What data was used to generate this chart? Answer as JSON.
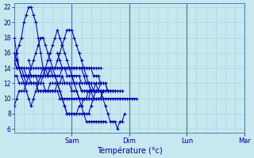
{
  "title": "Température (°c)",
  "bg_color": "#c8e8f0",
  "grid_color": "#b0d0e0",
  "line_color": "#0000cc",
  "ylim": [
    5.5,
    22.5
  ],
  "yticks": [
    6,
    8,
    10,
    12,
    14,
    16,
    18,
    20,
    22
  ],
  "xlim": [
    0,
    96
  ],
  "day_positions": [
    24,
    48,
    72,
    96
  ],
  "day_labels": [
    "Sam",
    "Dim",
    "Lun",
    "Mar"
  ],
  "series": [
    {
      "start": 0,
      "values": [
        16,
        15,
        14,
        13,
        12,
        11,
        10,
        9,
        10,
        11,
        12,
        13,
        14,
        14,
        14,
        14,
        13,
        13,
        12,
        11,
        10,
        9,
        8,
        8,
        8,
        8,
        8,
        9,
        9,
        10,
        10,
        10,
        11,
        11,
        12,
        11,
        11,
        10,
        9,
        8,
        7,
        7,
        7,
        6,
        7,
        7,
        8
      ]
    },
    {
      "start": 0,
      "values": [
        15,
        16,
        17,
        18,
        20,
        21,
        22,
        22,
        21,
        20,
        18,
        16,
        14,
        13,
        13,
        14,
        14,
        14,
        14,
        14,
        14,
        14,
        13,
        13,
        13,
        12,
        12,
        12,
        11,
        11,
        11,
        11,
        11,
        11,
        11,
        11,
        11,
        11,
        11,
        11,
        11
      ]
    },
    {
      "start": 0,
      "values": [
        18,
        16,
        14,
        13,
        13,
        13,
        13,
        12,
        12,
        12,
        12,
        12,
        13,
        14,
        15,
        16,
        17,
        18,
        19,
        18,
        17,
        16,
        15,
        14,
        13,
        12,
        11,
        10,
        9,
        8,
        8,
        8,
        9,
        10,
        11,
        11,
        12
      ]
    },
    {
      "start": 0,
      "values": [
        16,
        15,
        14,
        14,
        14,
        13,
        13,
        13,
        13,
        13,
        13,
        13,
        13,
        13,
        13,
        14,
        14,
        14,
        15,
        16,
        17,
        18,
        19,
        19,
        19,
        18,
        17,
        16,
        15,
        14,
        13,
        12,
        11,
        10,
        10,
        10,
        10,
        11
      ]
    },
    {
      "start": 0,
      "values": [
        15,
        14,
        14,
        14,
        14,
        14,
        14,
        13,
        13,
        13,
        12,
        12,
        12,
        11,
        11,
        11,
        11,
        11,
        12,
        12,
        12,
        12,
        12,
        12,
        12,
        12,
        12,
        12,
        11,
        11,
        11,
        11,
        11,
        11,
        11,
        11,
        11
      ]
    },
    {
      "start": 0,
      "values": [
        15,
        14,
        14,
        14,
        13,
        12,
        12,
        12,
        12,
        12,
        11,
        11,
        11,
        11,
        11,
        12,
        12,
        12,
        12,
        12,
        13,
        12,
        12,
        12,
        11,
        11,
        11,
        10,
        10,
        10,
        10,
        10,
        10,
        10,
        10,
        10,
        10,
        11
      ]
    },
    {
      "start": 0,
      "values": [
        13,
        13,
        12,
        12,
        12,
        12,
        12,
        12,
        12,
        12,
        11,
        11,
        11,
        11,
        11,
        11,
        11,
        11,
        11,
        10,
        10,
        10,
        10,
        10,
        10,
        10,
        10,
        10,
        10,
        10,
        10,
        11,
        11,
        11,
        11,
        11,
        11
      ]
    },
    {
      "start": 6,
      "values": [
        15,
        14,
        14,
        14,
        14,
        14,
        14,
        14,
        14,
        14,
        14,
        14,
        14,
        14,
        14,
        14,
        14,
        14,
        14,
        14,
        14,
        14,
        14,
        14,
        14,
        14,
        14,
        14,
        14,
        14,
        14
      ]
    },
    {
      "start": 12,
      "values": [
        14,
        14,
        13,
        13,
        13,
        13,
        13,
        13,
        14,
        14,
        14,
        14,
        14,
        14,
        14,
        14,
        14,
        13,
        12,
        12,
        12,
        11,
        11,
        11,
        11,
        11,
        11
      ]
    },
    {
      "start": 18,
      "values": [
        16,
        15,
        14,
        14,
        14,
        14,
        14,
        14,
        14,
        14,
        14,
        14,
        14,
        14,
        14,
        13,
        13,
        13,
        12,
        12,
        12,
        11,
        11,
        11,
        11
      ]
    },
    {
      "start": 24,
      "values": [
        13,
        13,
        13,
        13,
        12,
        12,
        12,
        12,
        12,
        12,
        12,
        12,
        12,
        12,
        12,
        11,
        11,
        11,
        11,
        11,
        11,
        11
      ]
    },
    {
      "start": 30,
      "values": [
        12,
        12,
        11,
        11,
        11,
        11,
        11,
        10,
        10,
        10,
        10,
        10,
        10,
        10,
        10,
        10,
        10,
        10,
        10,
        10,
        10,
        10
      ]
    },
    {
      "start": 0,
      "values": [
        9,
        10,
        11,
        11,
        11,
        12,
        13,
        14,
        15,
        16,
        17,
        18,
        18,
        17,
        16,
        15,
        14,
        13,
        12,
        11,
        10,
        9,
        8,
        8,
        8,
        8,
        8,
        8,
        8,
        8,
        7,
        7,
        7,
        7,
        7,
        7,
        7,
        7,
        7
      ]
    }
  ]
}
